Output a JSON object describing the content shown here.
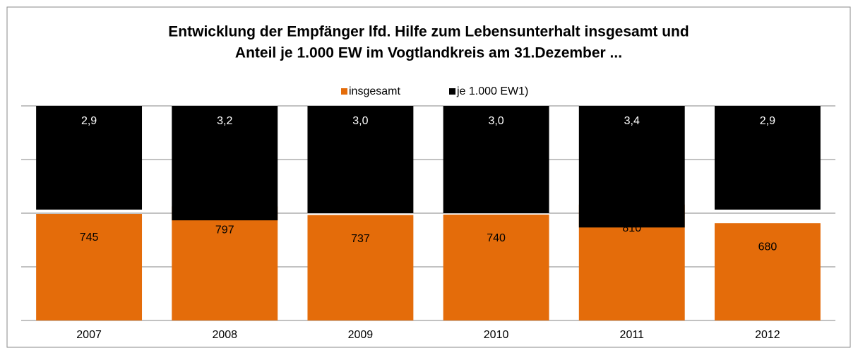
{
  "chart_data": {
    "type": "bar",
    "title": [
      "Entwicklung der Empfänger lfd. Hilfe zum Lebensunterhalt insgesamt und",
      "Anteil je 1.000 EW im Vogtlandkreis am 31.Dezember ..."
    ],
    "categories": [
      "2007",
      "2008",
      "2009",
      "2010",
      "2011",
      "2012"
    ],
    "series": [
      {
        "name": "insgesamt",
        "color": "#e46c0a",
        "values": [
          745,
          797,
          737,
          740,
          810,
          680
        ]
      },
      {
        "name": "je 1.000 EW1)",
        "color": "#000000",
        "axis": "y2",
        "values": [
          2.9,
          3.2,
          3.0,
          3.0,
          3.4,
          2.9
        ],
        "value_labels": [
          "2,9",
          "3,2",
          "3,0",
          "3,0",
          "3,4",
          "2,9"
        ]
      }
    ],
    "ylim": [
      0,
      1500
    ],
    "yticks": [
      0,
      375,
      750,
      1125,
      1500
    ],
    "y2lim": [
      0,
      6
    ],
    "y2_reversed": true,
    "grid": true,
    "legend": "top"
  }
}
